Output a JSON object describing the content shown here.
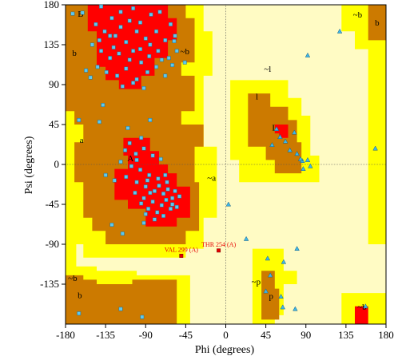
{
  "chart_data": {
    "type": "scatter",
    "xlabel": "Phi (degrees)",
    "ylabel": "Psi (degrees)",
    "xlim": [
      -180,
      180
    ],
    "ylim": [
      -180,
      180
    ],
    "xticks": [
      -180,
      -135,
      -90,
      -45,
      0,
      45,
      90,
      135,
      180
    ],
    "yticks": [
      -135,
      -90,
      -45,
      0,
      45,
      90,
      135,
      180
    ],
    "colors": {
      "generously_allowed": "#fffbc4",
      "additional_allowed": "#ffff00",
      "allowed": "#cc7a00",
      "core": "#ff0000",
      "points": "#5cc8f0",
      "glycine": "#3fb7e8",
      "outlier": "#e60000"
    },
    "region_labels": [
      {
        "text": "B",
        "x": -163,
        "y": 170
      },
      {
        "text": "b",
        "x": -170,
        "y": 126
      },
      {
        "text": "a",
        "x": -162,
        "y": 28
      },
      {
        "text": "A",
        "x": -107,
        "y": 7
      },
      {
        "text": "~b",
        "x": -46,
        "y": 128
      },
      {
        "text": "~l",
        "x": 47,
        "y": 108
      },
      {
        "text": "l",
        "x": 35,
        "y": 77
      },
      {
        "text": "L",
        "x": 55,
        "y": 42
      },
      {
        "text": "~a",
        "x": -16,
        "y": -15
      },
      {
        "text": "~b",
        "x": -172,
        "y": -128
      },
      {
        "text": "b",
        "x": -164,
        "y": -147
      },
      {
        "text": "~p",
        "x": 34,
        "y": -132
      },
      {
        "text": "p",
        "x": 51,
        "y": -148
      },
      {
        "text": "~b",
        "x": 148,
        "y": 169
      },
      {
        "text": "b",
        "x": 170,
        "y": 160
      },
      {
        "text": "~b",
        "x": 153,
        "y": -160
      }
    ],
    "outliers": [
      {
        "label": "VAL 299 (A)",
        "x": -50,
        "y": -103
      },
      {
        "label": "THR 254 (A)",
        "x": -8,
        "y": -97
      }
    ],
    "triangles": [
      {
        "x": 128,
        "y": 150
      },
      {
        "x": 61,
        "y": 31
      },
      {
        "x": 67,
        "y": 26
      },
      {
        "x": 72,
        "y": 16
      },
      {
        "x": 77,
        "y": 36
      },
      {
        "x": 80,
        "y": 12
      },
      {
        "x": 86,
        "y": 4
      },
      {
        "x": 87,
        "y": -5
      },
      {
        "x": 92,
        "y": 5
      },
      {
        "x": 95,
        "y": -2
      },
      {
        "x": 52,
        "y": 22
      },
      {
        "x": 57,
        "y": 40
      },
      {
        "x": 84,
        "y": 6
      },
      {
        "x": 3,
        "y": -45
      },
      {
        "x": 23,
        "y": -84
      },
      {
        "x": 47,
        "y": -106
      },
      {
        "x": 65,
        "y": -110
      },
      {
        "x": 80,
        "y": -95
      },
      {
        "x": 50,
        "y": -125
      },
      {
        "x": 45,
        "y": -143
      },
      {
        "x": 62,
        "y": -149
      },
      {
        "x": 64,
        "y": -161
      },
      {
        "x": 78,
        "y": -163
      },
      {
        "x": 168,
        "y": 18
      },
      {
        "x": 92,
        "y": 123
      },
      {
        "x": 157,
        "y": -160
      }
    ],
    "squares": [
      {
        "x": -161,
        "y": 171
      },
      {
        "x": -140,
        "y": 178
      },
      {
        "x": -128,
        "y": 165
      },
      {
        "x": -118,
        "y": 172
      },
      {
        "x": -104,
        "y": 176
      },
      {
        "x": -96,
        "y": 160
      },
      {
        "x": -84,
        "y": 169
      },
      {
        "x": -74,
        "y": 172
      },
      {
        "x": -146,
        "y": 158
      },
      {
        "x": -136,
        "y": 150
      },
      {
        "x": -124,
        "y": 145
      },
      {
        "x": -112,
        "y": 138
      },
      {
        "x": -100,
        "y": 150
      },
      {
        "x": -90,
        "y": 142
      },
      {
        "x": -78,
        "y": 150
      },
      {
        "x": -68,
        "y": 140
      },
      {
        "x": -58,
        "y": 139
      },
      {
        "x": -150,
        "y": 135
      },
      {
        "x": -140,
        "y": 128
      },
      {
        "x": -130,
        "y": 120
      },
      {
        "x": -120,
        "y": 125
      },
      {
        "x": -108,
        "y": 118
      },
      {
        "x": -96,
        "y": 130
      },
      {
        "x": -86,
        "y": 122
      },
      {
        "x": -76,
        "y": 128
      },
      {
        "x": -64,
        "y": 120
      },
      {
        "x": -55,
        "y": 128
      },
      {
        "x": -144,
        "y": 110
      },
      {
        "x": -134,
        "y": 104
      },
      {
        "x": -122,
        "y": 100
      },
      {
        "x": -112,
        "y": 108
      },
      {
        "x": -100,
        "y": 96
      },
      {
        "x": -88,
        "y": 104
      },
      {
        "x": -78,
        "y": 110
      },
      {
        "x": -68,
        "y": 100
      },
      {
        "x": -152,
        "y": 98
      },
      {
        "x": -157,
        "y": 106
      },
      {
        "x": -116,
        "y": 88
      },
      {
        "x": -104,
        "y": 92
      },
      {
        "x": -92,
        "y": 86
      },
      {
        "x": -130,
        "y": 145
      },
      {
        "x": -118,
        "y": 155
      },
      {
        "x": -108,
        "y": 162
      },
      {
        "x": -85,
        "y": 135
      },
      {
        "x": -72,
        "y": 118
      },
      {
        "x": -60,
        "y": 112
      },
      {
        "x": -126,
        "y": 132
      },
      {
        "x": -104,
        "y": 128
      },
      {
        "x": -172,
        "y": 170
      },
      {
        "x": -142,
        "y": 140
      },
      {
        "x": -95,
        "y": 115
      },
      {
        "x": -62,
        "y": 158
      },
      {
        "x": -165,
        "y": 50
      },
      {
        "x": -142,
        "y": 48
      },
      {
        "x": -110,
        "y": 41
      },
      {
        "x": -85,
        "y": 50
      },
      {
        "x": -108,
        "y": 24
      },
      {
        "x": -113,
        "y": 16
      },
      {
        "x": -101,
        "y": 12
      },
      {
        "x": -92,
        "y": 18
      },
      {
        "x": -82,
        "y": 10
      },
      {
        "x": -73,
        "y": 6
      },
      {
        "x": -118,
        "y": 3
      },
      {
        "x": -106,
        "y": -2
      },
      {
        "x": -96,
        "y": -6
      },
      {
        "x": -86,
        "y": -12
      },
      {
        "x": -76,
        "y": -16
      },
      {
        "x": -66,
        "y": -20
      },
      {
        "x": -112,
        "y": -14
      },
      {
        "x": -100,
        "y": -20
      },
      {
        "x": -90,
        "y": -25
      },
      {
        "x": -80,
        "y": -30
      },
      {
        "x": -70,
        "y": -33
      },
      {
        "x": -60,
        "y": -38
      },
      {
        "x": -102,
        "y": -32
      },
      {
        "x": -92,
        "y": -38
      },
      {
        "x": -82,
        "y": -42
      },
      {
        "x": -72,
        "y": -46
      },
      {
        "x": -62,
        "y": -50
      },
      {
        "x": -87,
        "y": -50
      },
      {
        "x": -77,
        "y": -54
      },
      {
        "x": -67,
        "y": -40
      },
      {
        "x": -57,
        "y": -30
      },
      {
        "x": -65,
        "y": -28
      },
      {
        "x": -75,
        "y": -24
      },
      {
        "x": -85,
        "y": -32
      },
      {
        "x": -95,
        "y": -44
      },
      {
        "x": -70,
        "y": -58
      },
      {
        "x": -80,
        "y": -62
      },
      {
        "x": -90,
        "y": -56
      },
      {
        "x": -125,
        "y": -18
      },
      {
        "x": -135,
        "y": -12
      },
      {
        "x": -128,
        "y": -68
      },
      {
        "x": -116,
        "y": -78
      },
      {
        "x": -92,
        "y": -66
      },
      {
        "x": -60,
        "y": -45
      },
      {
        "x": -100,
        "y": 5
      },
      {
        "x": -95,
        "y": 30
      },
      {
        "x": -88,
        "y": -18
      },
      {
        "x": -68,
        "y": -12
      },
      {
        "x": -55,
        "y": -48
      },
      {
        "x": -52,
        "y": -36
      },
      {
        "x": -138,
        "y": 67
      },
      {
        "x": -165,
        "y": -168
      },
      {
        "x": -118,
        "y": -163
      },
      {
        "x": -94,
        "y": -172
      },
      {
        "x": -57,
        "y": 145
      },
      {
        "x": -46,
        "y": 115
      }
    ]
  }
}
